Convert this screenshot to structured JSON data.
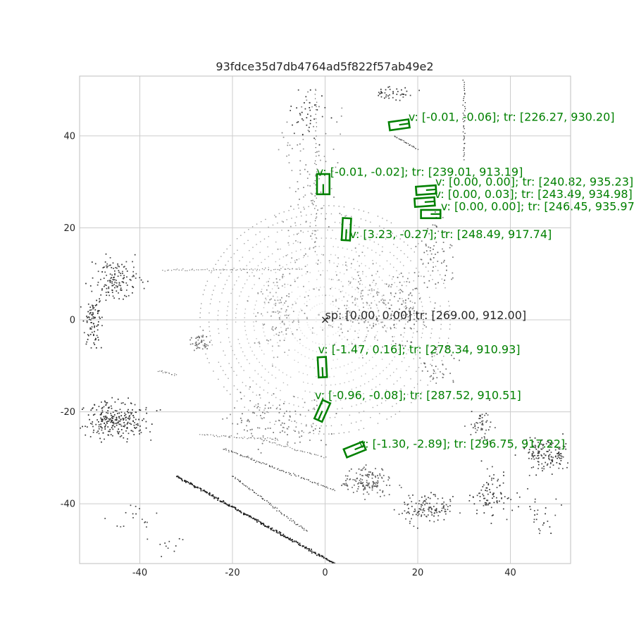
{
  "chart_data": {
    "type": "scatter",
    "title": "93fdce35d7db4764ad5f822f57ab49e2",
    "xlabel": "",
    "ylabel": "",
    "xlim": [
      -53.0,
      53.0
    ],
    "ylim": [
      -53.0,
      53.0
    ],
    "xticks": [
      -40,
      -20,
      0,
      20,
      40
    ],
    "yticks": [
      -40,
      -20,
      0,
      20,
      40
    ],
    "grid": true,
    "colors": {
      "box": "#008000",
      "ego": "#262626",
      "grid": "#cccccc",
      "axes": "#bfbfbf"
    },
    "ego": {
      "x": 0.0,
      "y": 0.0,
      "label": "sp: [0.00, 0.00] tr: [269.00, 912.00]"
    },
    "boxes": [
      {
        "cx": 16.0,
        "cy": 42.4,
        "w": 4.3,
        "h": 1.8,
        "angle": -8,
        "label": "v: [-0.01, -0.06]; tr: [226.27, 930.20]",
        "lx": 18.0,
        "ly": 43.3
      },
      {
        "cx": -0.4,
        "cy": 29.5,
        "w": 2.7,
        "h": 4.4,
        "angle": 0,
        "label": "v: [-0.01, -0.02]; tr: [239.01, 913.19]",
        "lx": -1.8,
        "ly": 31.3
      },
      {
        "cx": 21.8,
        "cy": 28.2,
        "w": 4.3,
        "h": 1.8,
        "angle": -4,
        "label": "v: [0.00, 0.00]; tr: [240.82, 935.23]",
        "lx": 23.8,
        "ly": 29.2
      },
      {
        "cx": 21.5,
        "cy": 25.6,
        "w": 4.3,
        "h": 1.8,
        "angle": -4,
        "label": "v: [0.00, 0.03]; tr: [243.49, 934.98]",
        "lx": 23.6,
        "ly": 26.5
      },
      {
        "cx": 22.8,
        "cy": 23.0,
        "w": 4.2,
        "h": 1.8,
        "angle": 0,
        "label": "v: [0.00, 0.00]; tr: [246.45, 935.97]",
        "lx": 25.0,
        "ly": 23.8
      },
      {
        "cx": 4.6,
        "cy": 19.7,
        "w": 1.8,
        "h": 4.8,
        "angle": 3,
        "label": "v: [3.23, -0.27]; tr: [248.49, 917.74]",
        "lx": 5.3,
        "ly": 17.8
      },
      {
        "cx": -0.6,
        "cy": -10.3,
        "w": 1.8,
        "h": 4.4,
        "angle": -3,
        "label": "v: [-1.47, 0.16]; tr: [278.34, 910.93]",
        "lx": -1.5,
        "ly": -7.3
      },
      {
        "cx": -0.6,
        "cy": -19.8,
        "w": 1.8,
        "h": 4.4,
        "angle": 24,
        "label": "v: [-0.96, -0.08]; tr: [287.52, 910.51]",
        "lx": -2.2,
        "ly": -17.2
      },
      {
        "cx": 6.4,
        "cy": -28.2,
        "w": 4.4,
        "h": 1.9,
        "angle": -22,
        "label": "v: [-1.30, -2.89]; tr: [296.75, 917.22]",
        "lx": 7.3,
        "ly": -27.8
      }
    ],
    "point_clusters": [
      {
        "kind": "rings",
        "cx": 0,
        "cy": 0,
        "r0": 2,
        "r1": 27,
        "count": 14,
        "shade": 232
      },
      {
        "kind": "line",
        "x0": -35,
        "y0": 10.8,
        "x1": -5,
        "y1": 11.0,
        "n": 70,
        "shade": 130,
        "size": 1.3
      },
      {
        "kind": "line",
        "x0": -32,
        "y0": -34,
        "x1": 2,
        "y1": -53,
        "n": 220,
        "shade": 30,
        "size": 1.8
      },
      {
        "kind": "line",
        "x0": -20,
        "y0": -34,
        "x1": -4,
        "y1": -46,
        "n": 70,
        "shade": 50,
        "size": 1.3
      },
      {
        "kind": "line",
        "x0": -22,
        "y0": -28,
        "x1": 2,
        "y1": -37,
        "n": 90,
        "shade": 70,
        "size": 1.3
      },
      {
        "kind": "line",
        "x0": -2,
        "y0": 50,
        "x1": -2,
        "y1": 15,
        "n": 40,
        "shade": 80,
        "size": 1.2
      },
      {
        "kind": "line",
        "x0": 30,
        "y0": 52,
        "x1": 30,
        "y1": 35,
        "n": 40,
        "shade": 30,
        "size": 1.3
      },
      {
        "kind": "line",
        "x0": 15,
        "y0": 40,
        "x1": 20,
        "y1": 37,
        "n": 25,
        "shade": 60,
        "size": 1.3
      },
      {
        "kind": "line",
        "x0": -27,
        "y0": -25,
        "x1": -10,
        "y1": -26,
        "n": 45,
        "shade": 110,
        "size": 1.2
      },
      {
        "kind": "line",
        "x0": -14,
        "y0": -26,
        "x1": 0,
        "y1": -30,
        "n": 40,
        "shade": 100,
        "size": 1.2
      },
      {
        "kind": "line",
        "x0": -36,
        "y0": -11,
        "x1": -32,
        "y1": -12,
        "n": 15,
        "shade": 100,
        "size": 1.2
      },
      {
        "kind": "blob",
        "cx": -45,
        "cy": -22,
        "rx": 7,
        "ry": 4,
        "n": 260,
        "shade": 50
      },
      {
        "kind": "blob",
        "cx": -45,
        "cy": 9,
        "rx": 5,
        "ry": 4,
        "n": 140,
        "shade": 60
      },
      {
        "kind": "blob",
        "cx": -50,
        "cy": 0,
        "rx": 2,
        "ry": 7,
        "n": 90,
        "shade": 50
      },
      {
        "kind": "blob",
        "cx": 48,
        "cy": -29,
        "rx": 5,
        "ry": 4,
        "n": 140,
        "shade": 60
      },
      {
        "kind": "blob",
        "cx": 36,
        "cy": -38,
        "rx": 4,
        "ry": 5,
        "n": 90,
        "shade": 60
      },
      {
        "kind": "blob",
        "cx": 22,
        "cy": -41,
        "rx": 6,
        "ry": 3,
        "n": 130,
        "shade": 70
      },
      {
        "kind": "blob",
        "cx": 9,
        "cy": -35,
        "rx": 5,
        "ry": 3,
        "n": 140,
        "shade": 90
      },
      {
        "kind": "blob",
        "cx": -27,
        "cy": -5,
        "rx": 2,
        "ry": 2,
        "n": 45,
        "shade": 110
      },
      {
        "kind": "blob",
        "cx": -10,
        "cy": 2,
        "rx": 6,
        "ry": 9,
        "n": 120,
        "shade": 150
      },
      {
        "kind": "blob",
        "cx": 8,
        "cy": 3,
        "rx": 8,
        "ry": 10,
        "n": 160,
        "shade": 150
      },
      {
        "kind": "blob",
        "cx": 17,
        "cy": 2,
        "rx": 5,
        "ry": 7,
        "n": 110,
        "shade": 120
      },
      {
        "kind": "blob",
        "cx": -3,
        "cy": 28,
        "rx": 7,
        "ry": 20,
        "n": 140,
        "shade": 140
      },
      {
        "kind": "blob",
        "cx": 15,
        "cy": 49,
        "rx": 4,
        "ry": 2,
        "n": 40,
        "shade": 60
      },
      {
        "kind": "blob",
        "cx": -4,
        "cy": 45,
        "rx": 4,
        "ry": 6,
        "n": 40,
        "shade": 50
      },
      {
        "kind": "blob",
        "cx": -10,
        "cy": -22,
        "rx": 12,
        "ry": 6,
        "n": 120,
        "shade": 120
      },
      {
        "kind": "blob",
        "cx": 34,
        "cy": -23,
        "rx": 3,
        "ry": 4,
        "n": 50,
        "shade": 80
      },
      {
        "kind": "blob",
        "cx": 24,
        "cy": 15,
        "rx": 4,
        "ry": 7,
        "n": 60,
        "shade": 110
      },
      {
        "kind": "blob",
        "cx": 25,
        "cy": -10,
        "rx": 4,
        "ry": 5,
        "n": 40,
        "shade": 110
      },
      {
        "kind": "blob",
        "cx": -41,
        "cy": -43,
        "rx": 6,
        "ry": 5,
        "n": 18,
        "shade": 70
      },
      {
        "kind": "blob",
        "cx": -33,
        "cy": -49,
        "rx": 3,
        "ry": 2,
        "n": 10,
        "shade": 60
      },
      {
        "kind": "blob",
        "cx": 45,
        "cy": -42,
        "rx": 6,
        "ry": 6,
        "n": 30,
        "shade": 60
      }
    ]
  }
}
